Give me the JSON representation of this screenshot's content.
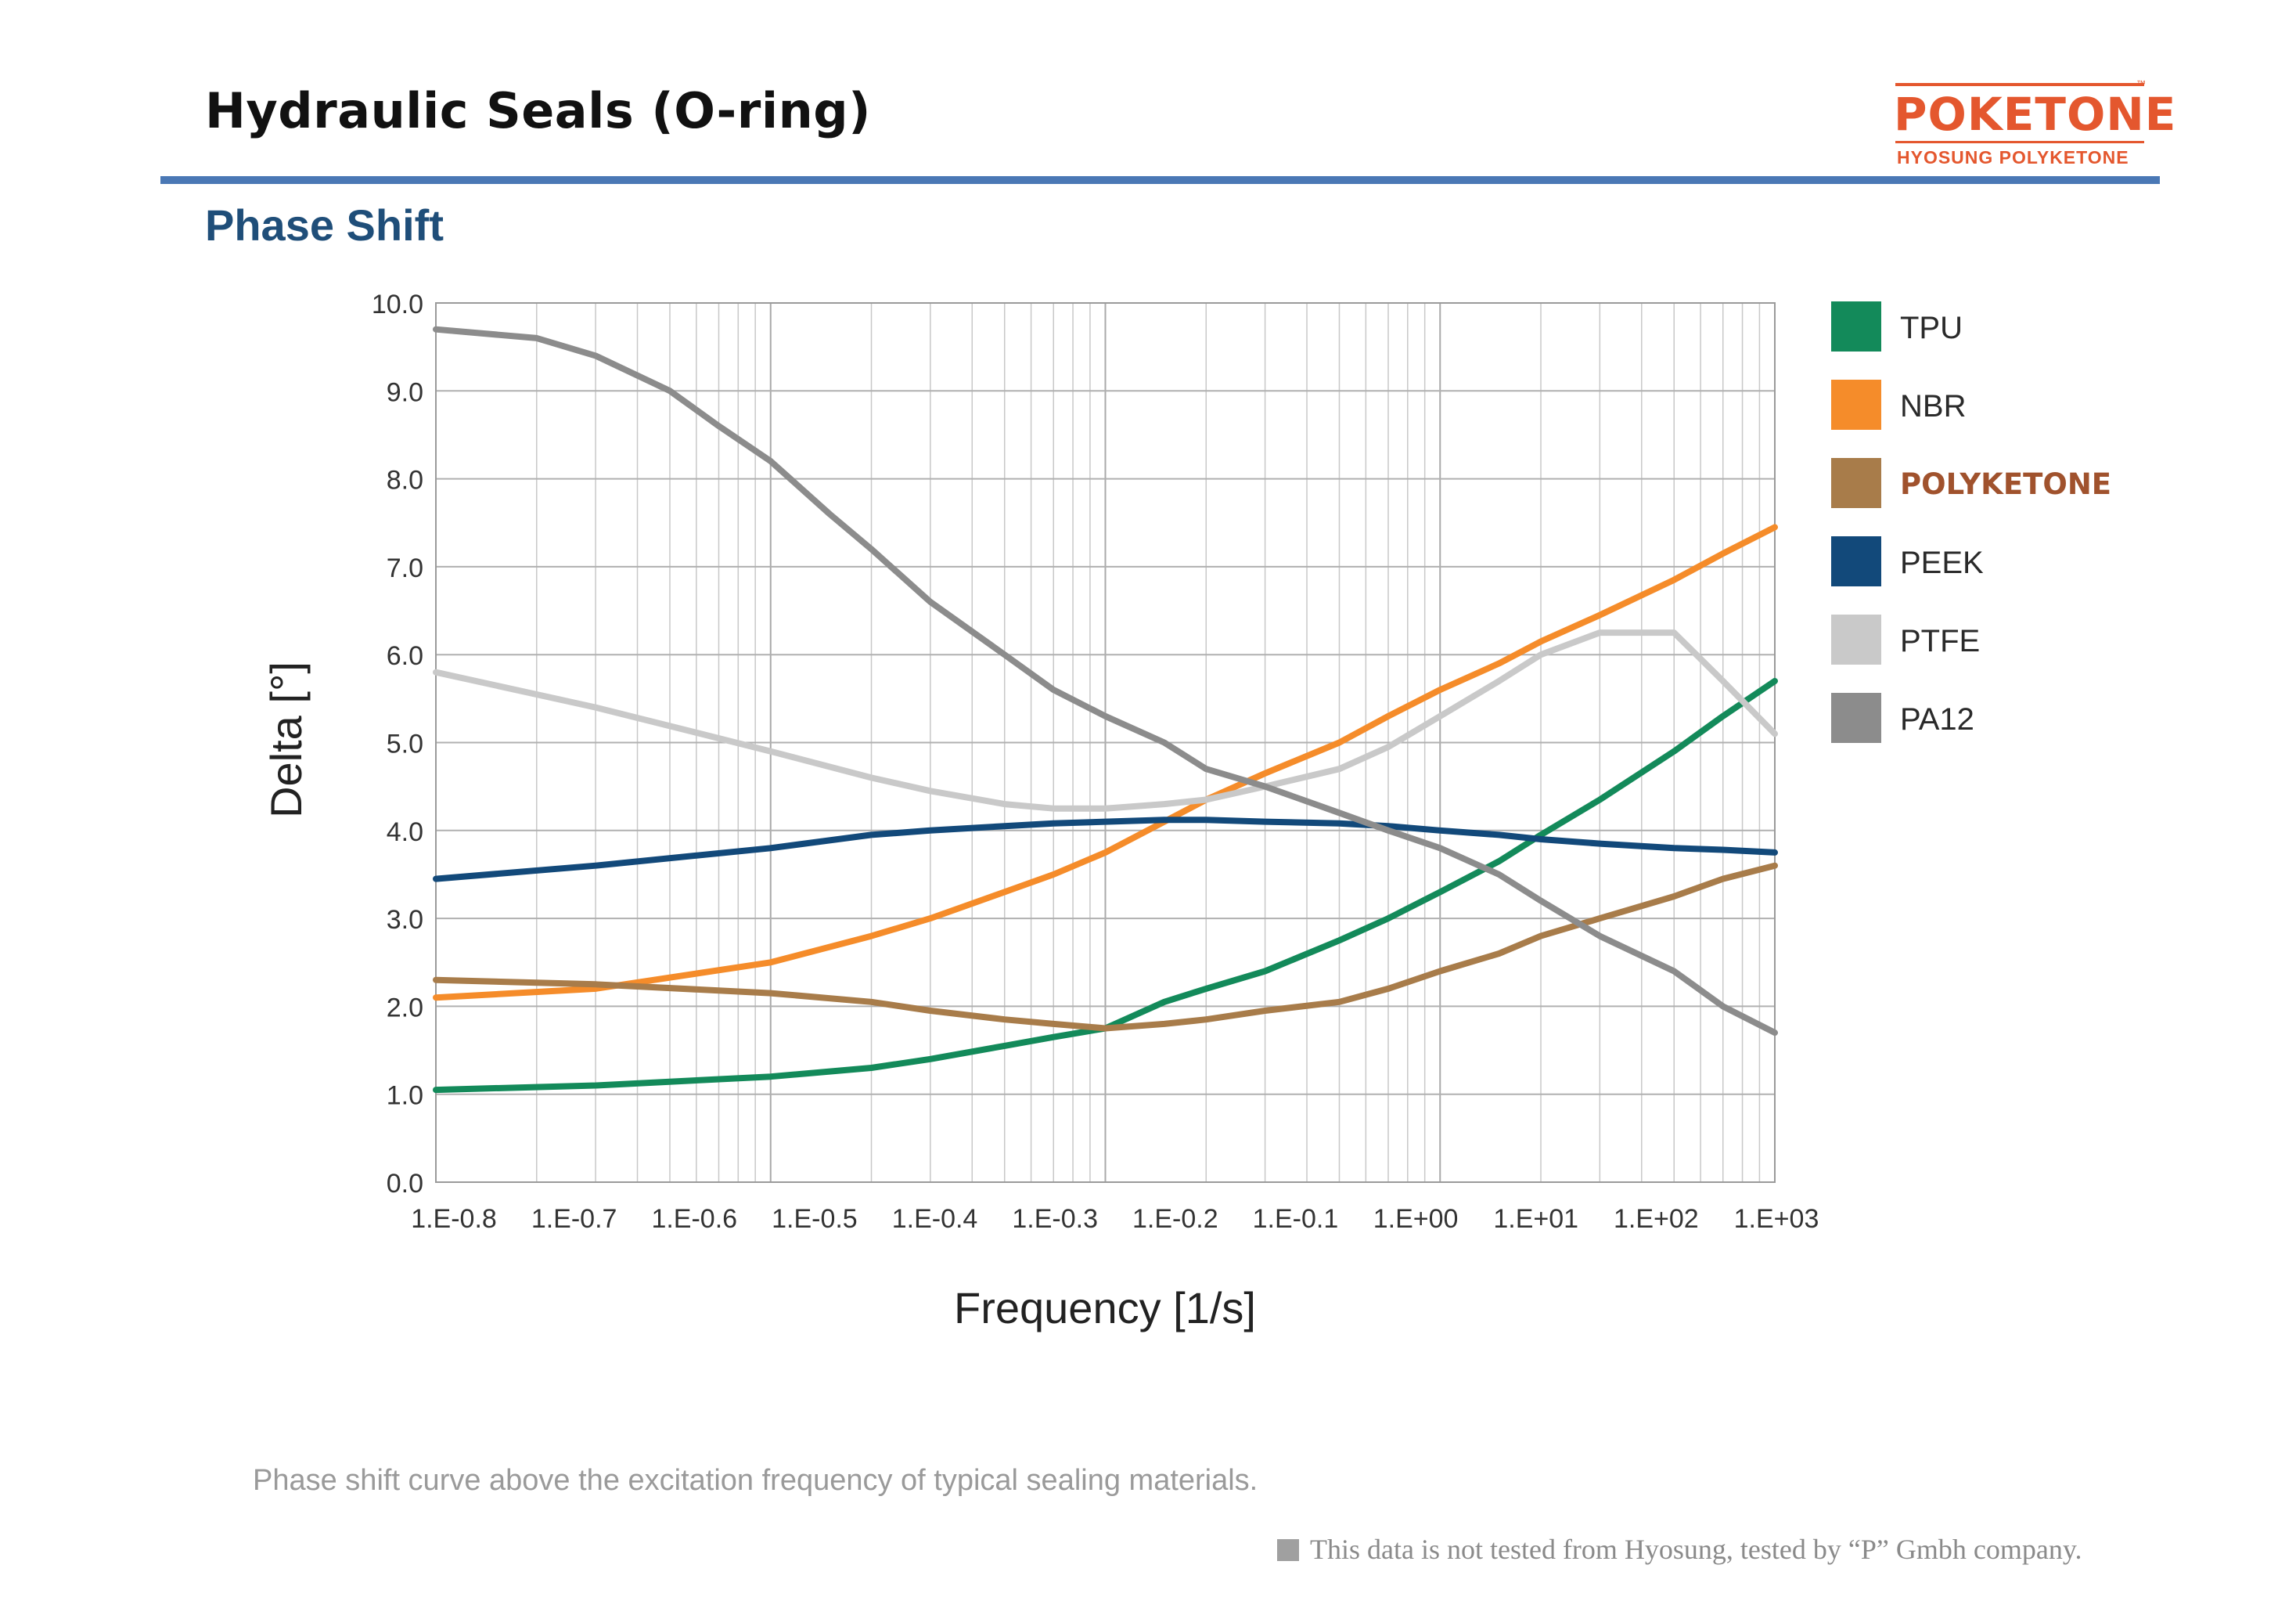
{
  "header": {
    "title": "Hydraulic Seals (O-ring)",
    "logo": {
      "brand": "POKETONE",
      "tm": "™",
      "subtitle": "HYOSUNG POLYKETONE"
    },
    "accent_color": "#4a78b5"
  },
  "section_title": "Phase Shift",
  "caption": "Phase shift curve above the excitation frequency of typical sealing materials.",
  "footnote": "This data is not tested from Hyosung, tested by “P” Gmbh company.",
  "chart_data": {
    "type": "line",
    "xlabel": "Frequency [1/s]",
    "ylabel": "Delta [°]",
    "x_scale": "log",
    "xlim": [
      0.1,
      1000
    ],
    "ylim": [
      0,
      10
    ],
    "x_tick_labels": [
      "1.E-0.8",
      "1.E-0.7",
      "1.E-0.6",
      "1.E-0.5",
      "1.E-0.4",
      "1.E-0.3",
      "1.E-0.2",
      "1.E-0.1",
      "1.E+00",
      "1.E+01",
      "1.E+02",
      "1.E+03"
    ],
    "y_ticks": [
      0,
      1,
      2,
      3,
      4,
      5,
      6,
      7,
      8,
      9,
      10
    ],
    "y_tick_labels": [
      "0.0",
      "1.0",
      "2.0",
      "3.0",
      "4.0",
      "5.0",
      "6.0",
      "7.0",
      "8.0",
      "9.0",
      "10.0"
    ],
    "grid": true,
    "legend_position": "right",
    "series": [
      {
        "name": "TPU",
        "color": "#138a5a",
        "x": [
          0.1,
          0.3,
          1,
          2,
          3,
          5,
          7,
          10,
          15,
          20,
          30,
          50,
          70,
          100,
          150,
          200,
          300,
          500,
          700,
          1000
        ],
        "y": [
          1.05,
          1.1,
          1.2,
          1.3,
          1.4,
          1.55,
          1.65,
          1.75,
          2.05,
          2.2,
          2.4,
          2.75,
          3.0,
          3.3,
          3.65,
          3.95,
          4.35,
          4.9,
          5.3,
          5.7
        ]
      },
      {
        "name": "NBR",
        "color": "#f58c2a",
        "x": [
          0.1,
          0.3,
          1,
          2,
          3,
          5,
          7,
          10,
          15,
          20,
          30,
          50,
          70,
          100,
          150,
          200,
          300,
          500,
          700,
          1000
        ],
        "y": [
          2.1,
          2.2,
          2.5,
          2.8,
          3.0,
          3.3,
          3.5,
          3.75,
          4.1,
          4.35,
          4.65,
          5.0,
          5.3,
          5.6,
          5.9,
          6.15,
          6.45,
          6.85,
          7.15,
          7.45
        ]
      },
      {
        "name": "POLYKETONE",
        "color": "#a87c4a",
        "x": [
          0.1,
          0.3,
          1,
          2,
          3,
          5,
          7,
          10,
          15,
          20,
          30,
          50,
          70,
          100,
          150,
          200,
          300,
          500,
          700,
          1000
        ],
        "y": [
          2.3,
          2.25,
          2.15,
          2.05,
          1.95,
          1.85,
          1.8,
          1.75,
          1.8,
          1.85,
          1.95,
          2.05,
          2.2,
          2.4,
          2.6,
          2.8,
          3.0,
          3.25,
          3.45,
          3.6
        ]
      },
      {
        "name": "PEEK",
        "color": "#12497a",
        "x": [
          0.1,
          0.3,
          1,
          2,
          3,
          5,
          7,
          10,
          15,
          20,
          30,
          50,
          70,
          100,
          150,
          200,
          300,
          500,
          700,
          1000
        ],
        "y": [
          3.45,
          3.6,
          3.8,
          3.95,
          4.0,
          4.05,
          4.08,
          4.1,
          4.12,
          4.12,
          4.1,
          4.08,
          4.05,
          4.0,
          3.95,
          3.9,
          3.85,
          3.8,
          3.78,
          3.75
        ]
      },
      {
        "name": "PTFE",
        "color": "#c9c9c9",
        "x": [
          0.1,
          0.3,
          1,
          2,
          3,
          5,
          7,
          10,
          15,
          20,
          30,
          50,
          70,
          100,
          150,
          200,
          300,
          500,
          700,
          1000
        ],
        "y": [
          5.8,
          5.4,
          4.9,
          4.6,
          4.45,
          4.3,
          4.25,
          4.25,
          4.3,
          4.35,
          4.5,
          4.7,
          4.95,
          5.3,
          5.7,
          6.0,
          6.25,
          6.25,
          5.7,
          5.1
        ]
      },
      {
        "name": "PA12",
        "color": "#8c8c8c",
        "x": [
          0.1,
          0.2,
          0.3,
          0.5,
          0.7,
          1,
          1.5,
          2,
          3,
          5,
          7,
          10,
          15,
          20,
          30,
          50,
          70,
          100,
          150,
          200,
          300,
          500,
          700,
          1000
        ],
        "y": [
          9.7,
          9.6,
          9.4,
          9.0,
          8.6,
          8.2,
          7.6,
          7.2,
          6.6,
          6.0,
          5.6,
          5.3,
          5.0,
          4.7,
          4.5,
          4.2,
          4.0,
          3.8,
          3.5,
          3.2,
          2.8,
          2.4,
          2.0,
          1.7
        ]
      }
    ]
  }
}
